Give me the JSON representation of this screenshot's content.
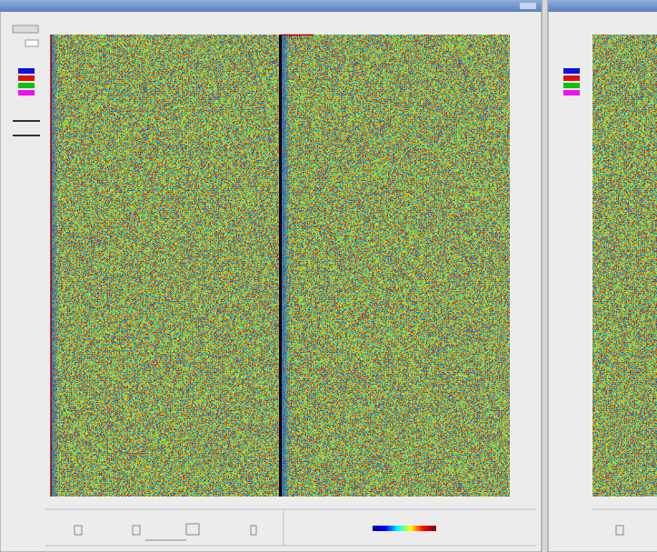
{
  "channel_swatches": [
    "#1010e0",
    "#e01010",
    "#10c010",
    "#f010f0"
  ],
  "colorbar_colors": [
    "#00008f",
    "#0000ff",
    "#00ffff",
    "#ffff00",
    "#ff0000",
    "#800000"
  ]
}
